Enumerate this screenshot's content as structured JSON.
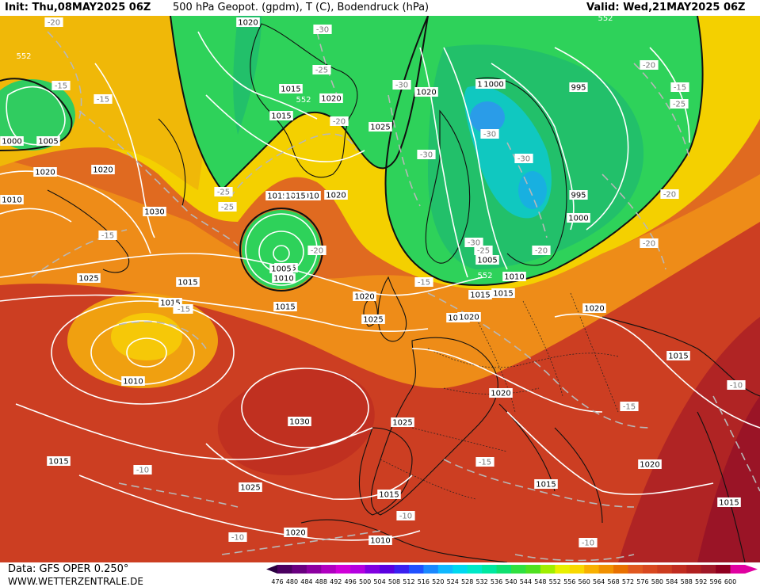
{
  "header": {
    "init": "Init: Thu,08MAY2025 06Z",
    "title": "500 hPa Geopot. (gpdm), T (C), Bodendruck (hPa)",
    "valid": "Valid: Wed,21MAY2025 06Z"
  },
  "footer": {
    "data_source": "Data: GFS OPER 0.250°",
    "website": "WWW.WETTERZENTRALE.DE"
  },
  "colorbar": {
    "ticks": [
      "476",
      "480",
      "484",
      "488",
      "492",
      "496",
      "500",
      "504",
      "508",
      "512",
      "516",
      "520",
      "524",
      "528",
      "532",
      "536",
      "540",
      "544",
      "548",
      "552",
      "556",
      "560",
      "564",
      "568",
      "572",
      "576",
      "580",
      "584",
      "588",
      "592",
      "596",
      "600"
    ],
    "colors": [
      "#4b0060",
      "#6a0080",
      "#8c00a0",
      "#b000c0",
      "#d000d8",
      "#b400e0",
      "#8000e0",
      "#5a00e0",
      "#3a20f0",
      "#2050ff",
      "#1a88ff",
      "#10b8ff",
      "#00d8f0",
      "#00e8c8",
      "#00e8a0",
      "#10e070",
      "#30e040",
      "#50e020",
      "#a0ee00",
      "#e8f000",
      "#f8d800",
      "#f8b000",
      "#f09000",
      "#e87000",
      "#e05820",
      "#d84820",
      "#cc3c20",
      "#c02c20",
      "#b02020",
      "#a01828",
      "#900020",
      "#e000a0"
    ]
  },
  "isobar_labels": [
    "1020",
    "1015",
    "1010",
    "1000",
    "995",
    "1005",
    "1030",
    "1025",
    "1010",
    "1015",
    "1020",
    "1025",
    "1030",
    "1000",
    "1005"
  ],
  "pressure_labels": [
    {
      "t": "1020"
    },
    {
      "t": "1015"
    },
    {
      "t": "1015"
    },
    {
      "t": "1020"
    },
    {
      "t": "1025"
    },
    {
      "t": "1015"
    },
    {
      "t": "1010"
    },
    {
      "t": "1005"
    },
    {
      "t": "1000"
    },
    {
      "t": "995"
    },
    {
      "t": "1000"
    },
    {
      "t": "995"
    },
    {
      "t": "1000"
    },
    {
      "t": "1005"
    },
    {
      "t": "1020"
    },
    {
      "t": "1030"
    },
    {
      "t": "1025"
    },
    {
      "t": "1015"
    },
    {
      "t": "1005"
    },
    {
      "t": "1010"
    },
    {
      "t": "1020"
    },
    {
      "t": "1015"
    },
    {
      "t": "1010"
    },
    {
      "t": "1015"
    },
    {
      "t": "1025"
    },
    {
      "t": "1020"
    },
    {
      "t": "1005"
    },
    {
      "t": "1010"
    },
    {
      "t": "1015"
    },
    {
      "t": "1020"
    },
    {
      "t": "1025"
    },
    {
      "t": "1020"
    },
    {
      "t": "1015"
    },
    {
      "t": "1020"
    },
    {
      "t": "1015"
    },
    {
      "t": "1010"
    },
    {
      "t": "1030"
    },
    {
      "t": "1025"
    },
    {
      "t": "1015"
    },
    {
      "t": "1015"
    },
    {
      "t": "1020"
    },
    {
      "t": "1025"
    },
    {
      "t": "1020"
    },
    {
      "t": "1010"
    },
    {
      "t": "1015"
    },
    {
      "t": "1020"
    },
    {
      "t": "1015"
    },
    {
      "t": "1000"
    },
    {
      "t": "1010"
    },
    {
      "t": "1020"
    },
    {
      "t": "1000"
    },
    {
      "t": "1015"
    }
  ],
  "temperature_labels": [
    {
      "t": "-20"
    },
    {
      "t": "-15"
    },
    {
      "t": "-30"
    },
    {
      "t": "-25"
    },
    {
      "t": "-20"
    },
    {
      "t": "-30"
    },
    {
      "t": "-25"
    },
    {
      "t": "-30"
    },
    {
      "t": "-30"
    },
    {
      "t": "-30"
    },
    {
      "t": "-15"
    },
    {
      "t": "-20"
    },
    {
      "t": "-25"
    },
    {
      "t": "-20"
    },
    {
      "t": "-20"
    },
    {
      "t": "-20"
    },
    {
      "t": "-15"
    },
    {
      "t": "-15"
    },
    {
      "t": "-25"
    },
    {
      "t": "-20"
    },
    {
      "t": "-30"
    },
    {
      "t": "-15"
    },
    {
      "t": "-15"
    },
    {
      "t": "-10"
    },
    {
      "t": "-15"
    },
    {
      "t": "-15"
    },
    {
      "t": "-10"
    },
    {
      "t": "-10"
    },
    {
      "t": "-10"
    },
    {
      "t": "-10"
    },
    {
      "t": "-20"
    },
    {
      "t": "-25"
    },
    {
      "t": "-15"
    }
  ],
  "height_labels": [
    {
      "t": "552"
    },
    {
      "t": "552"
    },
    {
      "t": "552"
    },
    {
      "t": "552"
    },
    {
      "t": "552"
    }
  ]
}
